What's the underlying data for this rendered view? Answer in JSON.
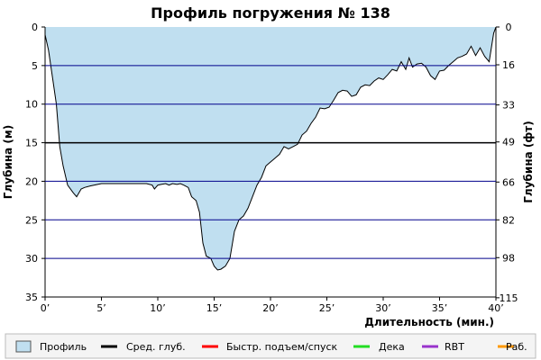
{
  "chart_data": {
    "type": "area",
    "title": "Профиль погружения № 138",
    "xlabel": "Длительность (мин.)",
    "ylabel_left": "Глубина (м)",
    "ylabel_right": "Глубина (фт)",
    "xlim": [
      0,
      40
    ],
    "ylim": [
      0,
      35
    ],
    "y_inverted": true,
    "grid": true,
    "x_ticks": [
      {
        "value": 0,
        "label": "0’"
      },
      {
        "value": 5,
        "label": "5’"
      },
      {
        "value": 10,
        "label": "10’"
      },
      {
        "value": 15,
        "label": "15’"
      },
      {
        "value": 20,
        "label": "20’"
      },
      {
        "value": 25,
        "label": "25’"
      },
      {
        "value": 30,
        "label": "30’"
      },
      {
        "value": 35,
        "label": "35’"
      },
      {
        "value": 40,
        "label": "40’"
      }
    ],
    "y_ticks_left": [
      {
        "value": 0,
        "label": "0"
      },
      {
        "value": 5,
        "label": "5"
      },
      {
        "value": 10,
        "label": "10"
      },
      {
        "value": 15,
        "label": "15"
      },
      {
        "value": 20,
        "label": "20"
      },
      {
        "value": 25,
        "label": "25"
      },
      {
        "value": 30,
        "label": "30"
      },
      {
        "value": 35,
        "label": "35"
      }
    ],
    "y_ticks_right": [
      {
        "value": 0,
        "label": "0"
      },
      {
        "value": 4.9,
        "label": "16"
      },
      {
        "value": 10.1,
        "label": "33"
      },
      {
        "value": 14.9,
        "label": "49"
      },
      {
        "value": 20.1,
        "label": "66"
      },
      {
        "value": 25.0,
        "label": "82"
      },
      {
        "value": 29.9,
        "label": "98"
      },
      {
        "value": 35.1,
        "label": "115"
      }
    ],
    "avg_depth": 15,
    "series": [
      {
        "name": "Профиль",
        "color": "#c0dff0",
        "line_color": "#000000",
        "x": [
          0,
          0.3,
          0.7,
          1.0,
          1.3,
          1.6,
          2.0,
          2.5,
          2.8,
          3.2,
          3.5,
          4.0,
          5,
          6,
          7,
          8,
          9,
          9.5,
          9.7,
          10.0,
          10.3,
          10.7,
          11,
          11.3,
          11.7,
          12,
          12.3,
          12.7,
          13,
          13.4,
          13.7,
          14.0,
          14.3,
          14.7,
          15.0,
          15.3,
          15.6,
          16.0,
          16.4,
          16.8,
          17.2,
          17.6,
          18,
          18.4,
          18.8,
          19.2,
          19.6,
          20,
          20.4,
          20.8,
          21.2,
          21.6,
          22.0,
          22.4,
          22.8,
          23.2,
          23.6,
          24.0,
          24.4,
          24.8,
          25.2,
          25.6,
          26.0,
          26.4,
          26.8,
          27.2,
          27.6,
          28.0,
          28.4,
          28.8,
          29.2,
          29.6,
          30.0,
          30.4,
          30.8,
          31.2,
          31.6,
          32.0,
          32.3,
          32.6,
          33.0,
          33.4,
          33.8,
          34.2,
          34.6,
          35.0,
          35.4,
          35.8,
          36.2,
          36.6,
          37.0,
          37.4,
          37.8,
          38.2,
          38.6,
          39.0,
          39.4,
          39.8,
          40.0
        ],
        "y": [
          1,
          3,
          7,
          10,
          15.5,
          18,
          20.5,
          21.5,
          22,
          21,
          20.8,
          20.6,
          20.3,
          20.3,
          20.3,
          20.3,
          20.3,
          20.5,
          21,
          20.5,
          20.4,
          20.3,
          20.5,
          20.3,
          20.4,
          20.3,
          20.5,
          20.8,
          22,
          22.5,
          24,
          28,
          29.7,
          30,
          31,
          31.5,
          31.4,
          31,
          30,
          26.5,
          25,
          24.5,
          23.5,
          22,
          20.5,
          19.5,
          18,
          17.5,
          17,
          16.5,
          15.5,
          15.8,
          15.5,
          15.2,
          14,
          13.5,
          12.5,
          11.7,
          10.5,
          10.6,
          10.4,
          9.5,
          8.5,
          8.2,
          8.3,
          9,
          8.8,
          7.8,
          7.5,
          7.6,
          7.0,
          6.6,
          6.8,
          6.2,
          5.5,
          5.7,
          4.5,
          5.5,
          4.0,
          5.2,
          4.8,
          4.7,
          5.2,
          6.3,
          6.8,
          5.7,
          5.6,
          5.0,
          4.5,
          4.0,
          3.8,
          3.5,
          2.5,
          3.7,
          2.7,
          3.8,
          4.5,
          0.8,
          0
        ]
      }
    ],
    "legend": {
      "placement": "bottom",
      "items": [
        {
          "label": "Профиль",
          "kind": "box",
          "color": "#c0dff0",
          "border": "#555555"
        },
        {
          "label": "Сред. глуб.",
          "kind": "line",
          "color": "#000000"
        },
        {
          "label": "Быстр. подъем/спуск",
          "kind": "line",
          "color": "#ff0000"
        },
        {
          "label": "Дека",
          "kind": "line",
          "color": "#22dd22"
        },
        {
          "label": "RBT",
          "kind": "line",
          "color": "#9933cc"
        },
        {
          "label": "Раб.",
          "kind": "line",
          "color": "#ff9900"
        }
      ]
    },
    "colors": {
      "grid": "#00008b",
      "avg_line": "#000000",
      "area_fill": "#c0dff0",
      "profile_line": "#000000"
    }
  }
}
